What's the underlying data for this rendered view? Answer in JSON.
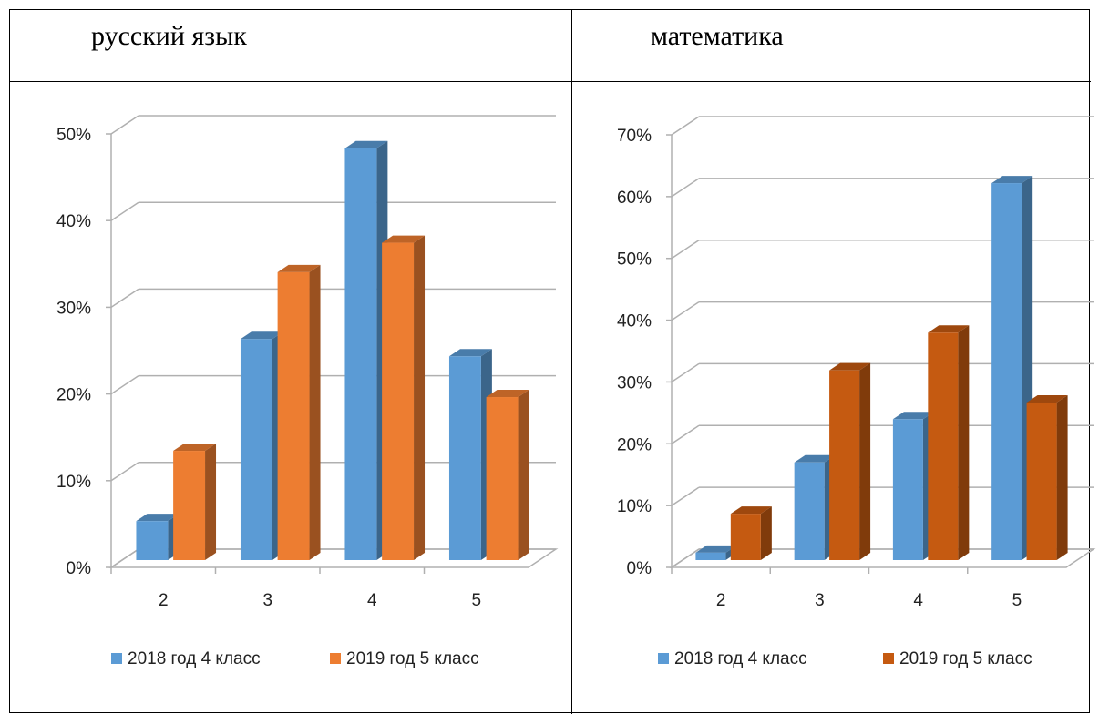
{
  "headers": {
    "left": "русский язык",
    "right": "математика"
  },
  "chart_data": [
    {
      "type": "bar",
      "title": "",
      "xlabel": "",
      "ylabel": "",
      "ylim": [
        0,
        0.5
      ],
      "yticks": [
        "0%",
        "10%",
        "20%",
        "30%",
        "40%",
        "50%"
      ],
      "categories": [
        "2",
        "3",
        "4",
        "5"
      ],
      "grid": true,
      "legend_position": "bottom",
      "series": [
        {
          "name": "2018 год 4 класс",
          "color": "#5b9bd5",
          "values": [
            0.045,
            0.255,
            0.475,
            0.235
          ]
        },
        {
          "name": "2019 год 5 класс",
          "color": "#ed7d31",
          "values": [
            0.126,
            0.332,
            0.366,
            0.188
          ]
        }
      ]
    },
    {
      "type": "bar",
      "title": "",
      "xlabel": "",
      "ylabel": "",
      "ylim": [
        0,
        0.7
      ],
      "yticks": [
        "0%",
        "10%",
        "20%",
        "30%",
        "40%",
        "50%",
        "60%",
        "70%"
      ],
      "categories": [
        "2",
        "3",
        "4",
        "5"
      ],
      "grid": true,
      "legend_position": "bottom",
      "series": [
        {
          "name": "2018 год 4 класс",
          "color": "#5b9bd5",
          "values": [
            0.012,
            0.158,
            0.228,
            0.61
          ]
        },
        {
          "name": "2019 год 5 класс",
          "color": "#c55a11",
          "values": [
            0.075,
            0.307,
            0.368,
            0.255
          ]
        }
      ]
    }
  ]
}
